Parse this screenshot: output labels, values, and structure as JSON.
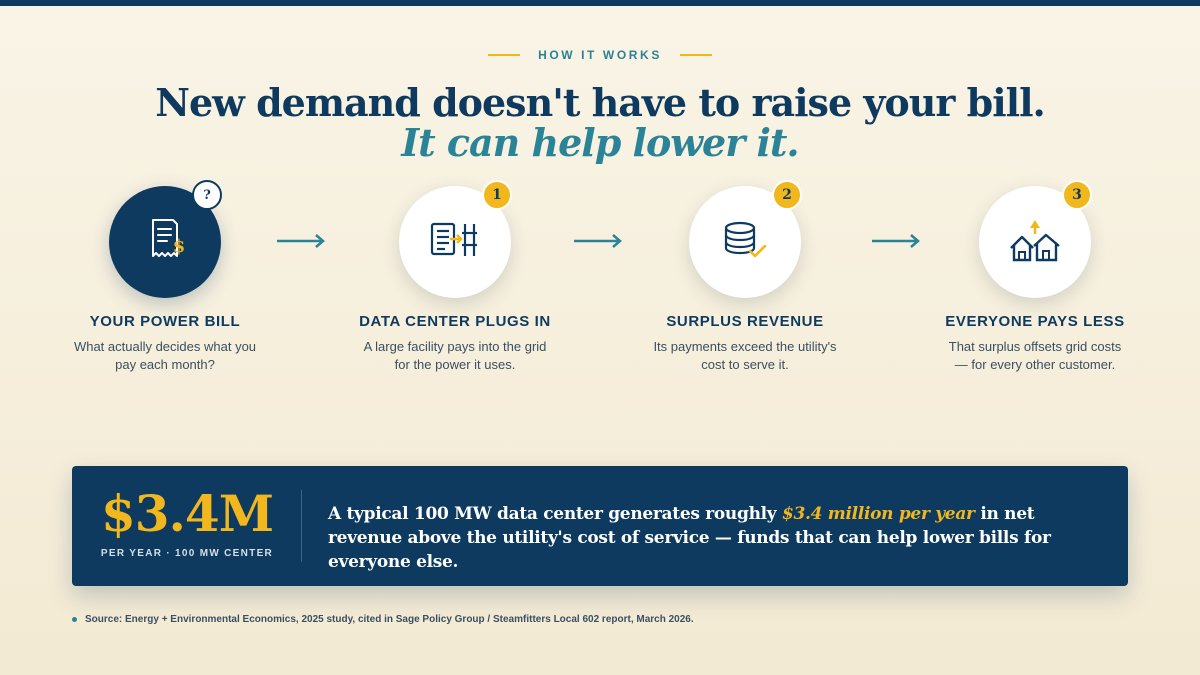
{
  "eyebrow": "HOW IT WORKS",
  "headline": "New demand doesn't have to raise your bill.",
  "subheadline": "It can help lower it.",
  "steps": [
    {
      "badge": "?",
      "icon": "receipt-dollar-icon",
      "title": "YOUR POWER BILL",
      "desc_line1": "What actually decides what you",
      "desc_line2": "pay each month?"
    },
    {
      "badge": "1",
      "icon": "server-plug-icon",
      "title": "DATA CENTER PLUGS IN",
      "desc_line1": "A large facility pays into the grid",
      "desc_line2": "for the power it uses."
    },
    {
      "badge": "2",
      "icon": "coin-stack-check-icon",
      "title": "SURPLUS REVENUE",
      "desc_line1": "Its payments exceed the utility's",
      "desc_line2": "cost to serve it."
    },
    {
      "badge": "3",
      "icon": "houses-arrow-icon",
      "title": "EVERYONE PAYS LESS",
      "desc_line1": "That surplus offsets grid costs",
      "desc_line2": "— for every other customer."
    }
  ],
  "stat": {
    "value": "$3.4M",
    "caption": "PER YEAR · 100 MW CENTER",
    "text_before": "A typical 100 MW data center generates roughly ",
    "text_highlight": "$3.4 million per year",
    "text_after": " in net revenue above the utility's cost of service — funds that can help lower bills for everyone else."
  },
  "source": "Source: Energy + Environmental Economics, 2025 study, cited in Sage Policy Group / Steamfitters Local 602 report, March 2026.",
  "colors": {
    "navy": "#0e3a60",
    "teal": "#2a8396",
    "gold": "#f2b71d",
    "background": "#f6efdc"
  }
}
